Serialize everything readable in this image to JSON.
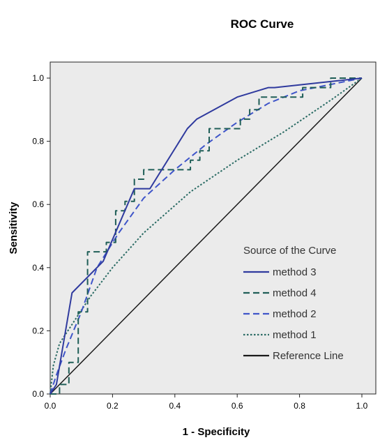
{
  "chart_data": {
    "type": "line",
    "title": "ROC Curve",
    "xlabel": "1 - Specificity",
    "ylabel": "Sensitivity",
    "xlim": [
      0,
      1
    ],
    "ylim": [
      0,
      1
    ],
    "xticks": [
      "0.0",
      "0.2",
      "0.4",
      "0.6",
      "0.8",
      "1.0"
    ],
    "yticks": [
      "0.0",
      "0.2",
      "0.4",
      "0.6",
      "0.8",
      "1.0"
    ],
    "plot_background": "#ebebeb",
    "grid": false,
    "legend": {
      "title": "Source of the Curve",
      "position": "bottom-right"
    },
    "series": [
      {
        "name": "method 3",
        "color": "#2f3a9e",
        "style": "solid",
        "x": [
          0,
          0.02,
          0.07,
          0.17,
          0.27,
          0.32,
          0.44,
          0.47,
          0.6,
          0.7,
          0.72,
          1.0
        ],
        "y": [
          0,
          0.03,
          0.32,
          0.42,
          0.65,
          0.65,
          0.84,
          0.87,
          0.94,
          0.97,
          0.97,
          1.0
        ]
      },
      {
        "name": "method 4",
        "color": "#1f5e57",
        "style": "dashed",
        "x": [
          0,
          0.03,
          0.03,
          0.06,
          0.06,
          0.09,
          0.09,
          0.12,
          0.12,
          0.18,
          0.18,
          0.21,
          0.21,
          0.24,
          0.24,
          0.27,
          0.27,
          0.3,
          0.3,
          0.45,
          0.45,
          0.48,
          0.48,
          0.51,
          0.51,
          0.61,
          0.61,
          0.64,
          0.64,
          0.67,
          0.67,
          0.7,
          0.7,
          0.81,
          0.81,
          0.9,
          0.9,
          0.97,
          0.97,
          1.0
        ],
        "y": [
          0,
          0,
          0.03,
          0.03,
          0.1,
          0.1,
          0.26,
          0.26,
          0.45,
          0.45,
          0.48,
          0.48,
          0.58,
          0.58,
          0.61,
          0.61,
          0.68,
          0.68,
          0.71,
          0.71,
          0.74,
          0.74,
          0.77,
          0.77,
          0.84,
          0.84,
          0.87,
          0.87,
          0.9,
          0.9,
          0.94,
          0.94,
          0.94,
          0.94,
          0.97,
          0.97,
          1.0,
          1.0,
          1.0,
          1.0
        ]
      },
      {
        "name": "method 2",
        "color": "#3f55c9",
        "style": "dashed",
        "x": [
          0,
          0.02,
          0.05,
          0.1,
          0.15,
          0.22,
          0.3,
          0.4,
          0.5,
          0.6,
          0.7,
          0.8,
          0.9,
          1.0
        ],
        "y": [
          0,
          0.06,
          0.14,
          0.26,
          0.4,
          0.51,
          0.62,
          0.71,
          0.79,
          0.86,
          0.92,
          0.96,
          0.98,
          1.0
        ]
      },
      {
        "name": "method 1",
        "color": "#2a6b64",
        "style": "dotted",
        "x": [
          0,
          0.01,
          0.03,
          0.07,
          0.13,
          0.2,
          0.3,
          0.45,
          0.6,
          0.75,
          0.9,
          1.0
        ],
        "y": [
          0,
          0.09,
          0.16,
          0.22,
          0.31,
          0.4,
          0.51,
          0.64,
          0.74,
          0.83,
          0.93,
          1.0
        ]
      },
      {
        "name": "Reference Line",
        "color": "#1a1a1a",
        "style": "solid",
        "x": [
          0,
          1
        ],
        "y": [
          0,
          1
        ]
      }
    ]
  }
}
